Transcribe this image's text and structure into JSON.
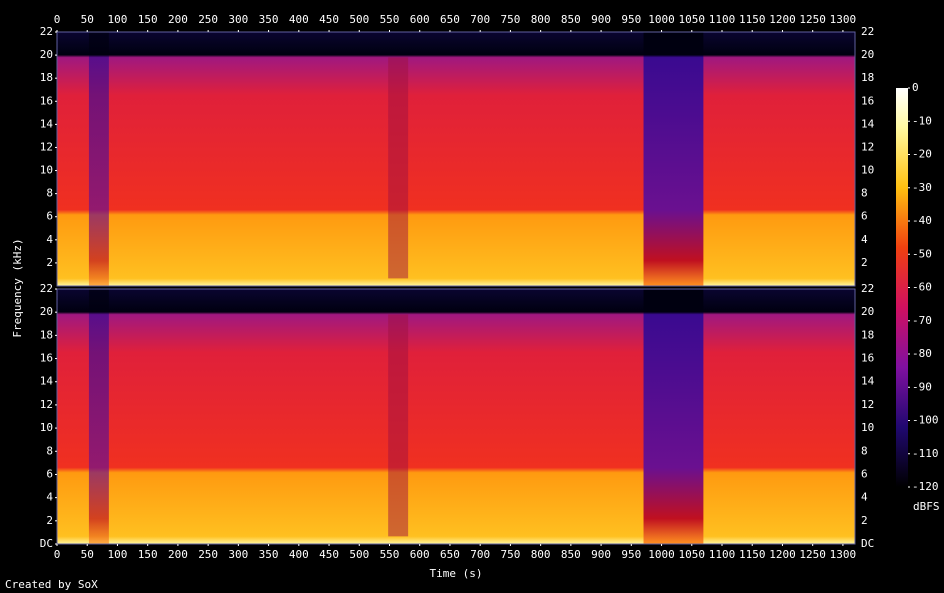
{
  "chart_data": [
    {
      "type": "spectrogram",
      "ylabel": "Frequency (kHz)",
      "xlim": [
        0,
        1320
      ],
      "xticks": [
        0,
        50,
        100,
        150,
        200,
        250,
        300,
        350,
        400,
        450,
        500,
        550,
        600,
        650,
        700,
        750,
        800,
        850,
        900,
        950,
        1000,
        1050,
        1100,
        1150,
        1200,
        1250,
        1300
      ],
      "ylim": [
        0,
        22
      ],
      "yticks": [
        2,
        4,
        6,
        8,
        10,
        12,
        14,
        16,
        18,
        20,
        22
      ]
    },
    {
      "type": "spectrogram",
      "xlabel": "Time (s)",
      "xlim": [
        0,
        1320
      ],
      "xticks": [
        0,
        50,
        100,
        150,
        200,
        250,
        300,
        350,
        400,
        450,
        500,
        550,
        600,
        650,
        700,
        750,
        800,
        850,
        900,
        950,
        1000,
        1050,
        1100,
        1150,
        1200,
        1250,
        1300
      ],
      "ylim": [
        0,
        22
      ],
      "yticks": [
        {
          "value": 0,
          "label": "DC"
        },
        2,
        4,
        6,
        8,
        10,
        12,
        14,
        16,
        18,
        20,
        22
      ]
    }
  ],
  "colorbar": {
    "label": "dBFS",
    "lim": [
      -120,
      0
    ],
    "ticks": [
      0,
      -10,
      -20,
      -30,
      -40,
      -50,
      -60,
      -70,
      -80,
      -90,
      -100,
      -110,
      -120
    ]
  },
  "credit": "Created by SoX"
}
